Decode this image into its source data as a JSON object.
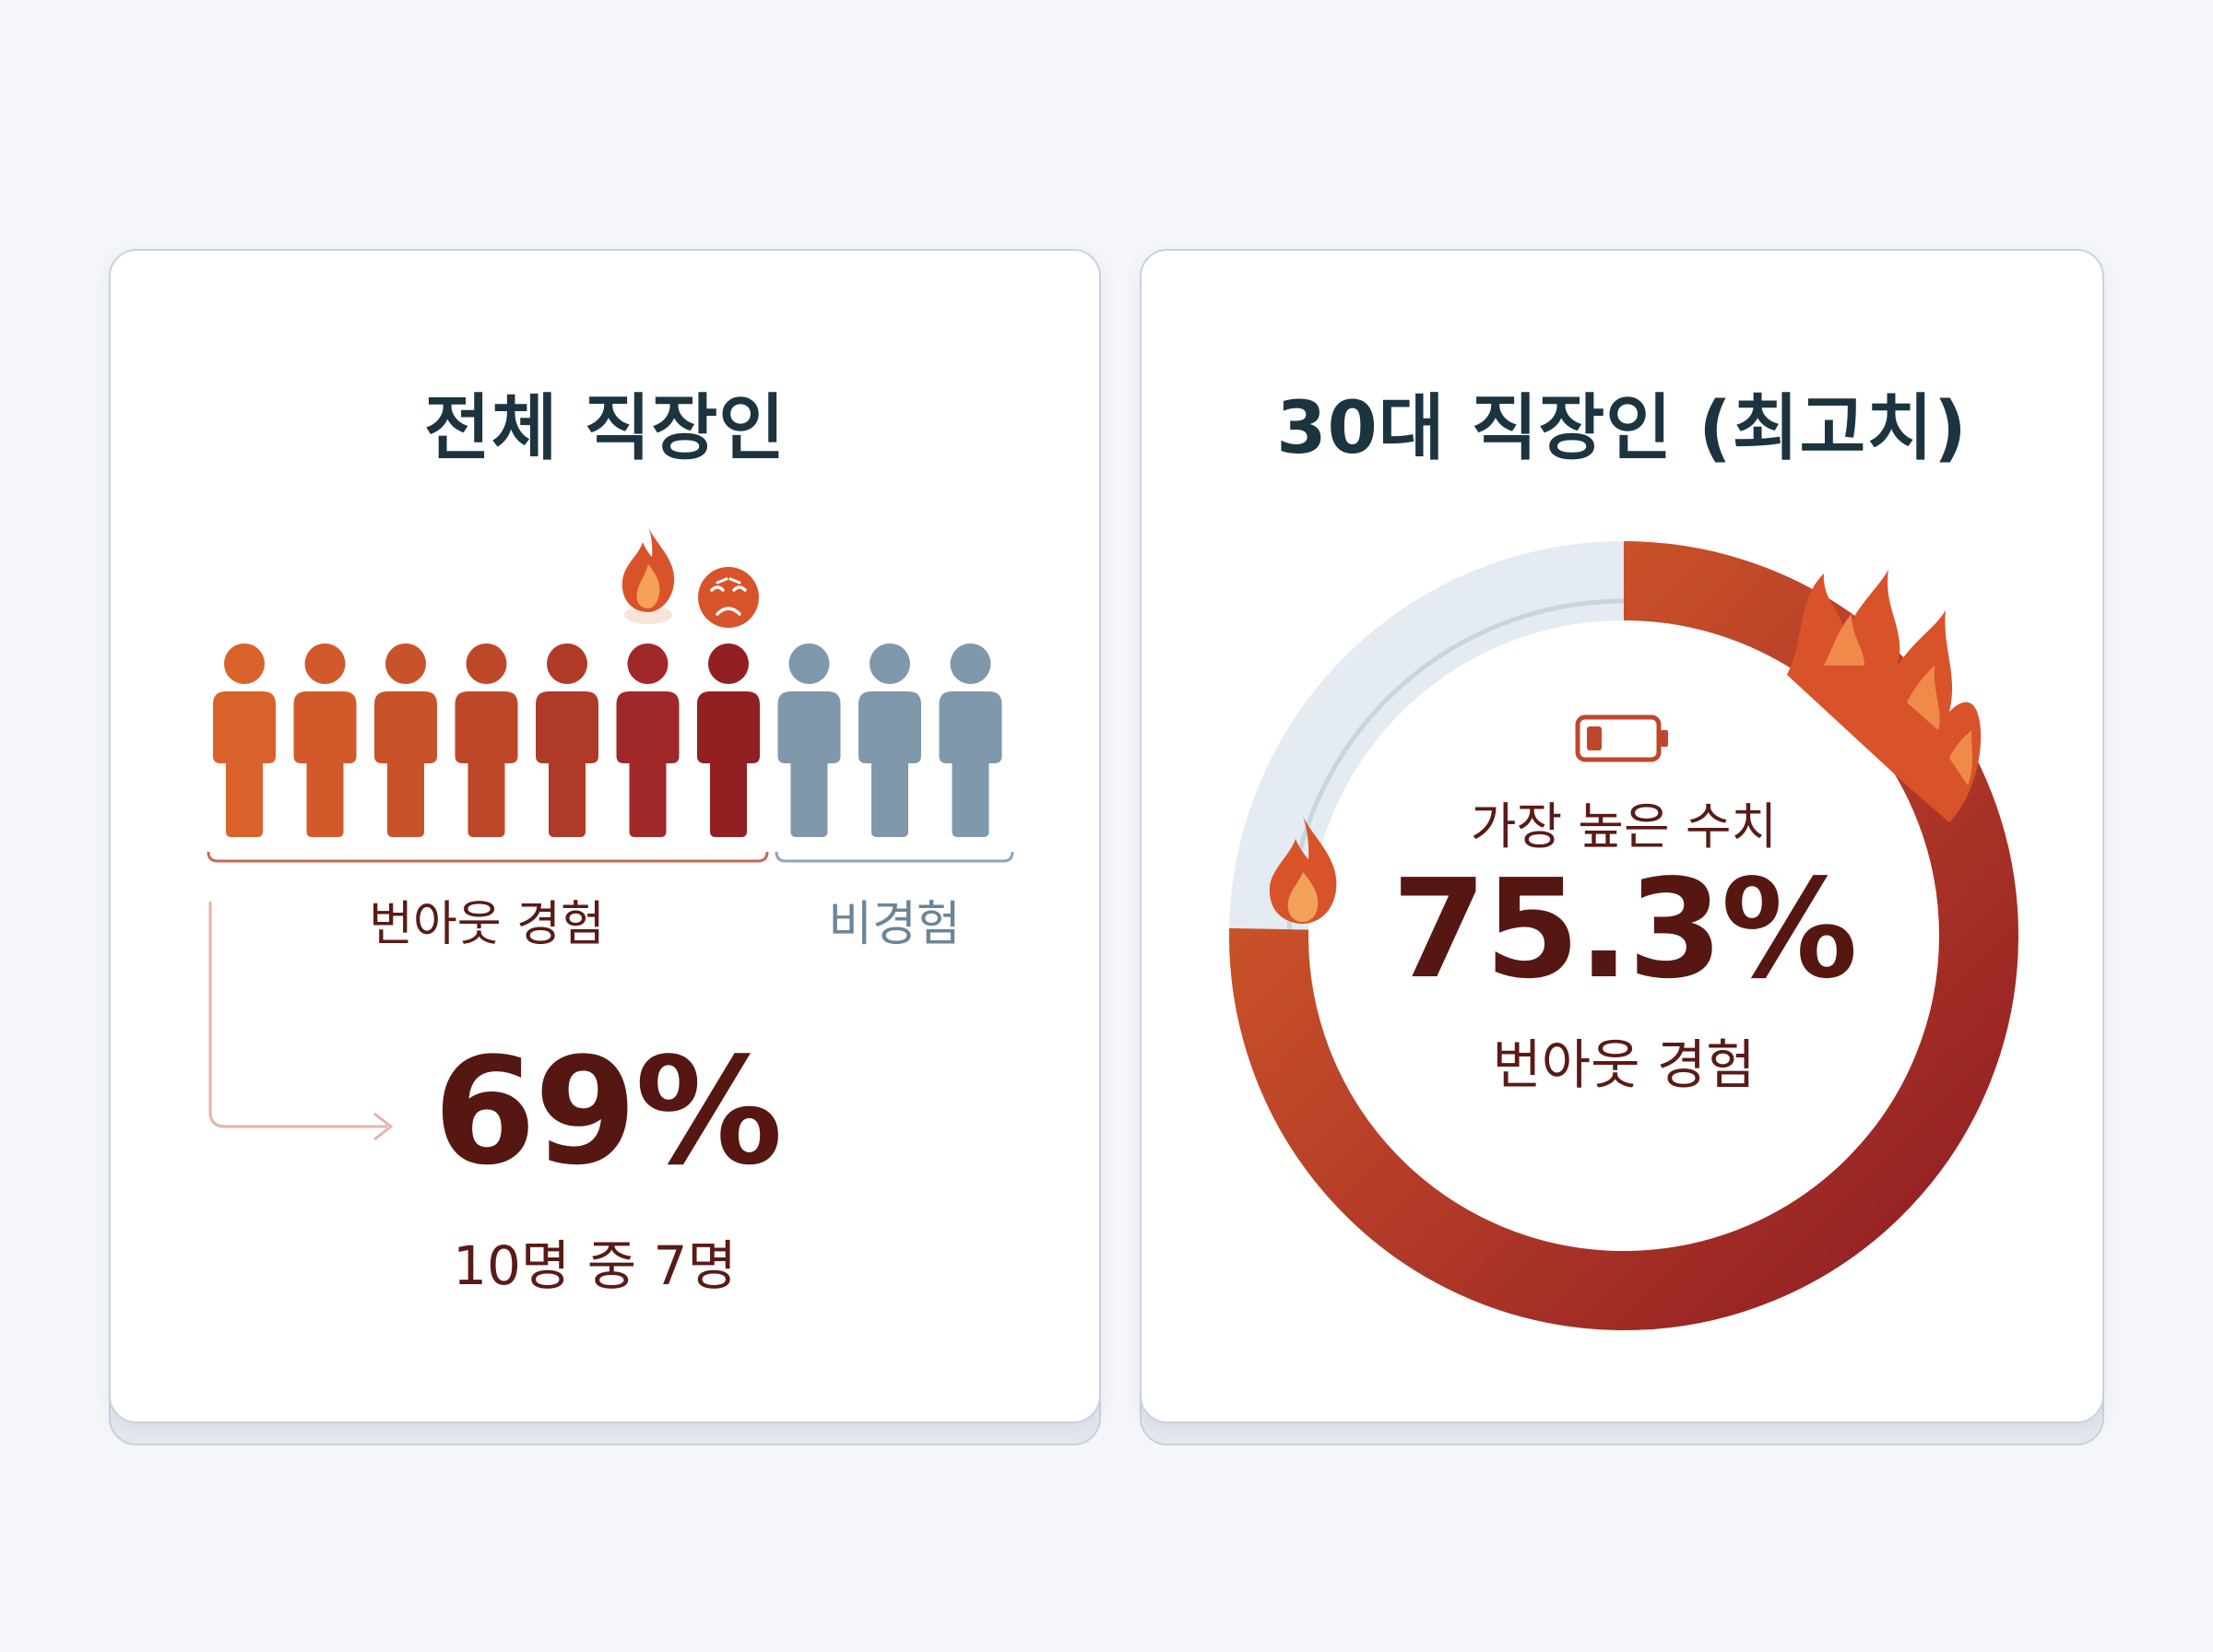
{
  "chart_data": [
    {
      "type": "pictograph",
      "title": "전체 직장인",
      "total": 10,
      "experienced": 7,
      "groups": [
        {
          "label": "번아웃 경험",
          "count": 7
        },
        {
          "label": "비경험",
          "count": 3
        }
      ],
      "value_label": "69%",
      "value": 69,
      "caption": "10명 중 7명",
      "colors": {
        "experienced": [
          "#d9622a",
          "#d25a2a",
          "#c8522a",
          "#bd4829",
          "#b03a28",
          "#a02828",
          "#922022"
        ],
        "not_experienced": "#7f98ab"
      }
    },
    {
      "type": "donut",
      "title": "30대 직장인 (최고치)",
      "value": 75.3,
      "value_label": "75.3%",
      "top_label": "가장 높은 수치",
      "bottom_label": "번아웃 경험",
      "colors": {
        "arc_start": "#d9622a",
        "arc_end": "#8e1c22",
        "track": "#e4ebf2"
      }
    }
  ],
  "icons": [
    "fire-icon",
    "sad-face-icon",
    "low-battery-icon",
    "flame-decoration"
  ]
}
